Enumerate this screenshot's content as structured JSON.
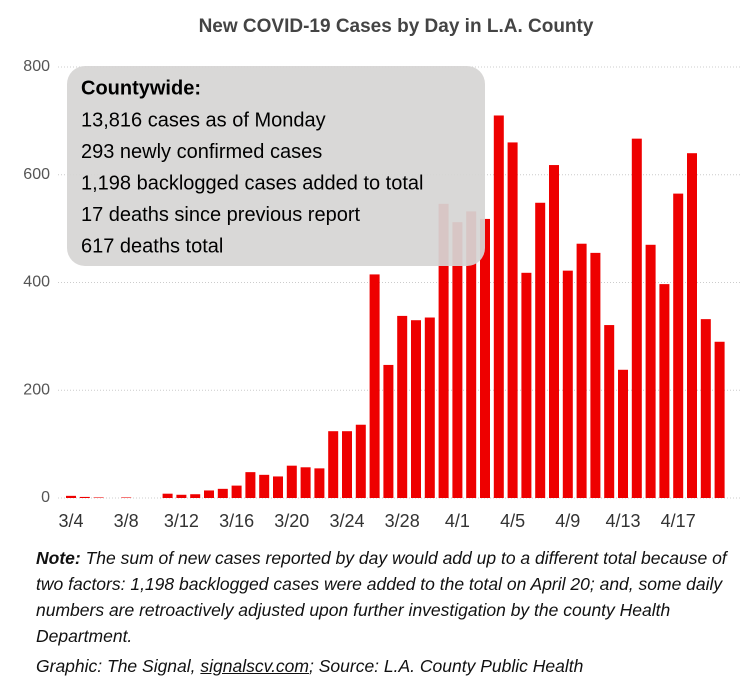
{
  "chart_data": {
    "type": "bar",
    "title": "New COVID-19 Cases by Day in L.A. County",
    "categories": [
      "3/4",
      null,
      null,
      null,
      "3/8",
      null,
      null,
      null,
      "3/12",
      null,
      null,
      null,
      "3/16",
      null,
      null,
      null,
      "3/20",
      null,
      null,
      null,
      "3/24",
      null,
      null,
      null,
      "3/28",
      null,
      null,
      null,
      "4/1",
      null,
      null,
      null,
      "4/5",
      null,
      null,
      null,
      "4/9",
      null,
      null,
      null,
      "4/13",
      null,
      null,
      null,
      "4/17",
      null,
      null,
      null
    ],
    "values": [
      4,
      2,
      1,
      0,
      1,
      0,
      0,
      8,
      6,
      7,
      14,
      17,
      23,
      48,
      43,
      40,
      60,
      57,
      55,
      124,
      124,
      136,
      415,
      247,
      338,
      330,
      335,
      546,
      512,
      532,
      518,
      710,
      660,
      418,
      548,
      618,
      422,
      472,
      455,
      321,
      238,
      667,
      470,
      397,
      565,
      640,
      332,
      290
    ],
    "color": "#ee0000",
    "ylim": [
      0,
      800
    ],
    "yticks": [
      0,
      200,
      400,
      600,
      800
    ],
    "grid": true,
    "annotation": {
      "heading": "Countywide:",
      "lines": [
        "13,816 cases as of Monday",
        "293 newly confirmed cases",
        "1,198 backlogged cases added to total",
        "17 deaths since previous report",
        "617 deaths total"
      ]
    }
  },
  "notes": {
    "note_label": "Note:",
    "note_text": " The sum of new cases reported by day would add up to a different total because of two factors: 1,198 backlogged cases were added to the total on April 20; and, some daily numbers are retroactively adjusted upon further investigation by the county Health Department.",
    "credit_prefix": "Graphic: The Signal, ",
    "credit_link": "signalscv.com",
    "credit_suffix": "; Source: L.A. County Public Health"
  }
}
